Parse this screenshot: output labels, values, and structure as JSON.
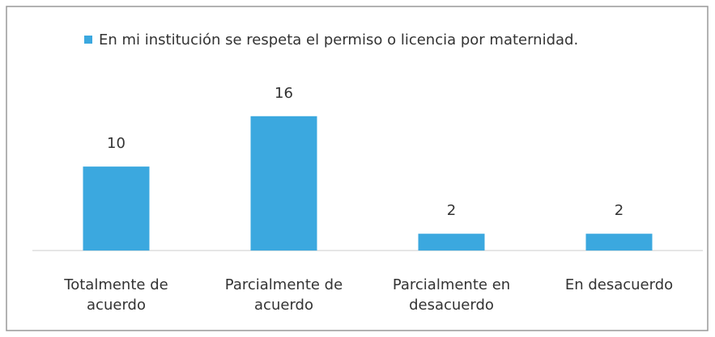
{
  "chart_data": {
    "type": "bar",
    "categories": [
      "Totalmente de acuerdo",
      "Parcialmente de acuerdo",
      "Parcialmente en desacuerdo",
      "En desacuerdo"
    ],
    "series": [
      {
        "name": "En mi institución se respeta el permiso o licencia por maternidad.",
        "color": "#3ba8df",
        "values": [
          10,
          16,
          2,
          2
        ]
      }
    ],
    "ylim": [
      0,
      18
    ],
    "legend": "top"
  }
}
